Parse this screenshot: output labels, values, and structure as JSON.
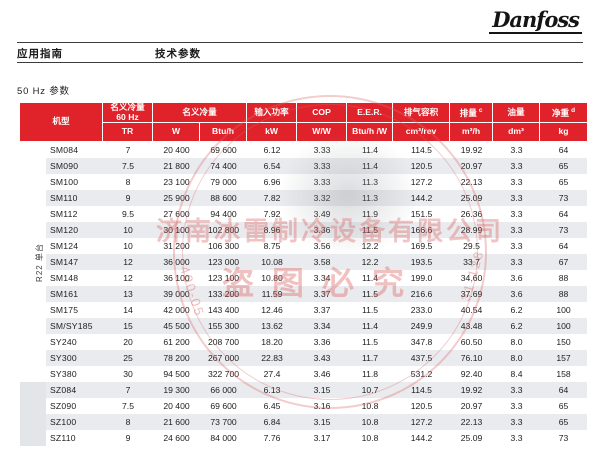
{
  "page": {
    "logo_text": "Danfoss",
    "nav": {
      "left_title": "应用指南",
      "right_title": "技术参数"
    },
    "section_title": "50 Hz 参数"
  },
  "table": {
    "header": {
      "model": "机型",
      "nominal_60hz": {
        "line1": "名义冷量",
        "line2": "60 Hz"
      },
      "nominal": "名义冷量",
      "input_power": "输入功率",
      "cop": "COP",
      "eer": "E.E.R.",
      "swept_volume": "排气容积",
      "displacement": {
        "label": "排量",
        "sup": "c"
      },
      "oil": "油量",
      "net_weight": {
        "label": "净重",
        "sup": "d"
      },
      "units": [
        "TR",
        "W",
        "Btu/h",
        "kW",
        "W/W",
        "Btu/h /W",
        "cm³/rev",
        "m³/h",
        "dm³",
        "kg"
      ]
    },
    "groups": [
      {
        "name": "group-band-r22",
        "label": "R22 单台",
        "rowspan": 15
      },
      {
        "name": "group-band-sz",
        "label": "",
        "rowspan": 4
      }
    ],
    "rows": [
      {
        "model": "SM084",
        "values": [
          "7",
          "20 400",
          "69 600",
          "6.12",
          "3.33",
          "11.4",
          "114.5",
          "19.92",
          "3.3",
          "64"
        ]
      },
      {
        "model": "SM090",
        "values": [
          "7.5",
          "21 800",
          "74 400",
          "6.54",
          "3.33",
          "11.4",
          "120.5",
          "20.97",
          "3.3",
          "65"
        ]
      },
      {
        "model": "SM100",
        "values": [
          "8",
          "23 100",
          "79 000",
          "6.96",
          "3.33",
          "11.3",
          "127.2",
          "22.13",
          "3.3",
          "65"
        ]
      },
      {
        "model": "SM110",
        "values": [
          "9",
          "25 900",
          "88 600",
          "7.82",
          "3.32",
          "11.3",
          "144.2",
          "25.09",
          "3.3",
          "73"
        ]
      },
      {
        "model": "SM112",
        "values": [
          "9.5",
          "27 600",
          "94 400",
          "7.92",
          "3.49",
          "11.9",
          "151.5",
          "26.36",
          "3.3",
          "64"
        ]
      },
      {
        "model": "SM120",
        "values": [
          "10",
          "30 100",
          "102 800",
          "8.96",
          "3.36",
          "11.5",
          "166.6",
          "28.99",
          "3.3",
          "73"
        ]
      },
      {
        "model": "SM124",
        "values": [
          "10",
          "31 200",
          "106 300",
          "8.75",
          "3.56",
          "12.2",
          "169.5",
          "29.5",
          "3.3",
          "64"
        ]
      },
      {
        "model": "SM147",
        "values": [
          "12",
          "36 000",
          "123 000",
          "10.08",
          "3.58",
          "12.2",
          "193.5",
          "33.7",
          "3.3",
          "67"
        ]
      },
      {
        "model": "SM148",
        "values": [
          "12",
          "36 100",
          "123 100",
          "10.80",
          "3.34",
          "11.4",
          "199.0",
          "34.60",
          "3.6",
          "88"
        ]
      },
      {
        "model": "SM161",
        "values": [
          "13",
          "39 000",
          "133 200",
          "11.59",
          "3.37",
          "11.5",
          "216.6",
          "37.69",
          "3.6",
          "88"
        ]
      },
      {
        "model": "SM175",
        "values": [
          "14",
          "42 000",
          "143 400",
          "12.46",
          "3.37",
          "11.5",
          "233.0",
          "40.54",
          "6.2",
          "100"
        ]
      },
      {
        "model": "SM/SY185",
        "values": [
          "15",
          "45 500",
          "155 300",
          "13.62",
          "3.34",
          "11.4",
          "249.9",
          "43.48",
          "6.2",
          "100"
        ]
      },
      {
        "model": "SY240",
        "values": [
          "20",
          "61 200",
          "208 700",
          "18.20",
          "3.36",
          "11.5",
          "347.8",
          "60.50",
          "8.0",
          "150"
        ]
      },
      {
        "model": "SY300",
        "values": [
          "25",
          "78 200",
          "267 000",
          "22.83",
          "3.43",
          "11.7",
          "437.5",
          "76.10",
          "8.0",
          "157"
        ]
      },
      {
        "model": "SY380",
        "values": [
          "30",
          "94 500",
          "322 700",
          "27.4",
          "3.46",
          "11.8",
          "531.2",
          "92.40",
          "8.4",
          "158"
        ]
      },
      {
        "model": "SZ084",
        "values": [
          "7",
          "19 300",
          "66 000",
          "6.13",
          "3.15",
          "10.7",
          "114.5",
          "19.92",
          "3.3",
          "64"
        ]
      },
      {
        "model": "SZ090",
        "values": [
          "7.5",
          "20 400",
          "69 600",
          "6.45",
          "3.16",
          "10.8",
          "120.5",
          "20.97",
          "3.3",
          "65"
        ]
      },
      {
        "model": "SZ100",
        "values": [
          "8",
          "21 600",
          "73 700",
          "6.84",
          "3.15",
          "10.8",
          "127.2",
          "22.13",
          "3.3",
          "65"
        ]
      },
      {
        "model": "SZ110",
        "values": [
          "9",
          "24 600",
          "84 000",
          "7.76",
          "3.17",
          "10.8",
          "144.2",
          "25.09",
          "3.3",
          "73"
        ]
      }
    ]
  },
  "watermark": {
    "company": "济南冰雷制冷设备有限公司",
    "notice": "盗图必究",
    "phone_left": "400-05",
    "phone_right": "31-128"
  },
  "colors": {
    "header_red": "#e0222a",
    "stripe_gray": "#e9ebee",
    "band_gray": "#e3e6e8"
  }
}
